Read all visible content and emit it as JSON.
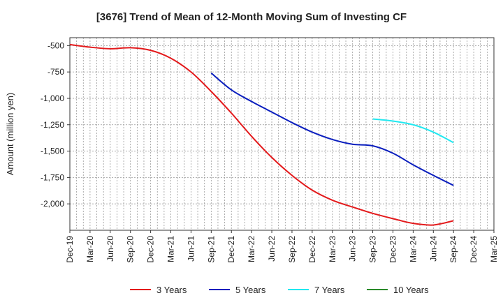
{
  "chart_data": {
    "type": "line",
    "title": "[3676]  Trend of Mean of 12-Month Moving Sum of Investing CF",
    "xlabel": "",
    "ylabel": "Amount (million yen)",
    "ylim": [
      -2250,
      -425
    ],
    "y_ticks": [
      -500,
      -750,
      -1000,
      -1250,
      -1500,
      -1750,
      -2000
    ],
    "y_tick_labels": [
      "-500",
      "-750",
      "-1,000",
      "-1,250",
      "-1,500",
      "-1,750",
      "-2,000"
    ],
    "x_range_months": [
      0,
      63
    ],
    "x_ticks": [
      0,
      3,
      6,
      9,
      12,
      15,
      18,
      21,
      24,
      27,
      30,
      33,
      36,
      39,
      42,
      45,
      48,
      51,
      54,
      57,
      60,
      63
    ],
    "x_tick_labels": [
      "Dec-19",
      "Mar-20",
      "Jun-20",
      "Sep-20",
      "Dec-20",
      "Mar-21",
      "Jun-21",
      "Sep-21",
      "Dec-21",
      "Mar-22",
      "Jun-22",
      "Sep-22",
      "Dec-22",
      "Mar-23",
      "Jun-23",
      "Sep-23",
      "Dec-23",
      "Mar-24",
      "Jun-24",
      "Sep-24",
      "Dec-24",
      "Mar-25"
    ],
    "grid": true,
    "legend_position": "bottom",
    "series": [
      {
        "name": "3 Years",
        "color": "#e31a1c",
        "x": [
          0,
          3,
          6,
          9,
          12,
          15,
          18,
          21,
          24,
          27,
          30,
          33,
          36,
          39,
          42,
          45,
          48,
          51,
          54,
          57
        ],
        "values": [
          -490,
          -515,
          -530,
          -520,
          -545,
          -620,
          -750,
          -935,
          -1140,
          -1360,
          -1560,
          -1730,
          -1870,
          -1965,
          -2030,
          -2090,
          -2140,
          -2185,
          -2200,
          -2160
        ]
      },
      {
        "name": "5 Years",
        "color": "#0a1ebe",
        "x": [
          21,
          24,
          27,
          30,
          33,
          36,
          39,
          42,
          45,
          48,
          51,
          54,
          57
        ],
        "values": [
          -760,
          -920,
          -1030,
          -1130,
          -1230,
          -1320,
          -1390,
          -1435,
          -1450,
          -1520,
          -1630,
          -1730,
          -1825
        ]
      },
      {
        "name": "7 Years",
        "color": "#22e8f0",
        "x": [
          45,
          48,
          51,
          54,
          57
        ],
        "values": [
          -1195,
          -1215,
          -1250,
          -1320,
          -1420
        ]
      },
      {
        "name": "10 Years",
        "color": "#2a8a2a",
        "x": [],
        "values": []
      }
    ]
  }
}
